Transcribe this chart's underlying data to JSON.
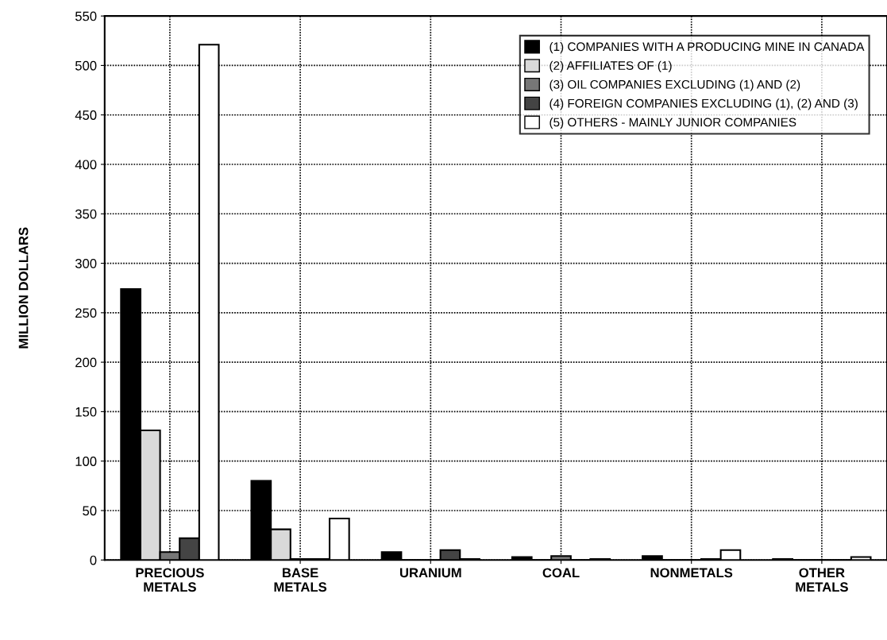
{
  "chart_data": {
    "type": "bar",
    "ylabel": "MILLION DOLLARS",
    "categories": [
      "PRECIOUS\nMETALS",
      "BASE\nMETALS",
      "URANIUM",
      "COAL",
      "NONMETALS",
      "OTHER\nMETALS"
    ],
    "series": [
      {
        "name": "(1) COMPANIES WITH A PRODUCING MINE IN CANADA",
        "color": "#000000",
        "values": [
          274,
          80,
          8,
          3,
          4,
          1
        ]
      },
      {
        "name": "(2) AFFILIATES OF (1)",
        "color": "#d9d9d9",
        "values": [
          131,
          31,
          0,
          0,
          0,
          0
        ]
      },
      {
        "name": "(3) OIL COMPANIES EXCLUDING (1) AND (2)",
        "color": "#777777",
        "values": [
          8,
          1,
          0,
          4,
          0,
          0
        ]
      },
      {
        "name": "(4) FOREIGN COMPANIES EXCLUDING (1), (2) AND (3)",
        "color": "#444444",
        "values": [
          22,
          1,
          10,
          0,
          1,
          0
        ]
      },
      {
        "name": "(5) OTHERS - MAINLY JUNIOR COMPANIES",
        "color": "#ffffff",
        "values": [
          521,
          42,
          1,
          1,
          10,
          3
        ]
      }
    ],
    "ylim": [
      0,
      550
    ],
    "yticks": [
      0,
      50,
      100,
      150,
      200,
      250,
      300,
      350,
      400,
      450,
      500,
      550
    ],
    "grid": true,
    "legend": "top right"
  }
}
